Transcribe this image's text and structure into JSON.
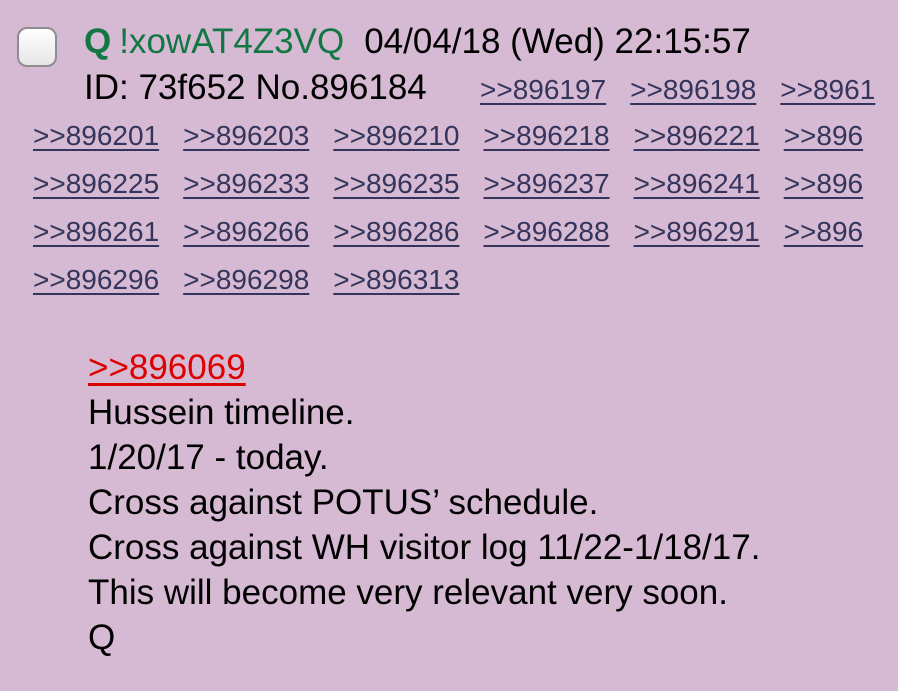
{
  "post": {
    "name": "Q",
    "tripcode": "!xowAT4Z3VQ",
    "datetime": "04/04/18 (Wed) 22:15:57",
    "id_label": "ID: 73f652",
    "number_label": "No.896184",
    "reply_links_first_row": [
      ">>896197",
      ">>896198",
      ">>8961"
    ],
    "reply_link_rows": [
      [
        ">>896201",
        ">>896203",
        ">>896210",
        ">>896218",
        ">>896221",
        ">>896"
      ],
      [
        ">>896225",
        ">>896233",
        ">>896235",
        ">>896237",
        ">>896241",
        ">>896"
      ],
      [
        ">>896261",
        ">>896266",
        ">>896286",
        ">>896288",
        ">>896291",
        ">>896"
      ],
      [
        ">>896296",
        ">>896298",
        ">>896313"
      ]
    ],
    "quote_link": ">>896069",
    "body_lines": [
      "Hussein timeline.",
      "1/20/17 - today.",
      "Cross against POTUS’ schedule.",
      "Cross against WH visitor log 11/22-1/18/17.",
      "This will become very relevant very soon.",
      "Q"
    ]
  },
  "colors": {
    "background": "#d6b9d2",
    "name": "#117743",
    "reply_link": "#34345c",
    "quote_link": "#dd0000"
  },
  "icons": {
    "select_checkbox": "checkbox-icon"
  }
}
